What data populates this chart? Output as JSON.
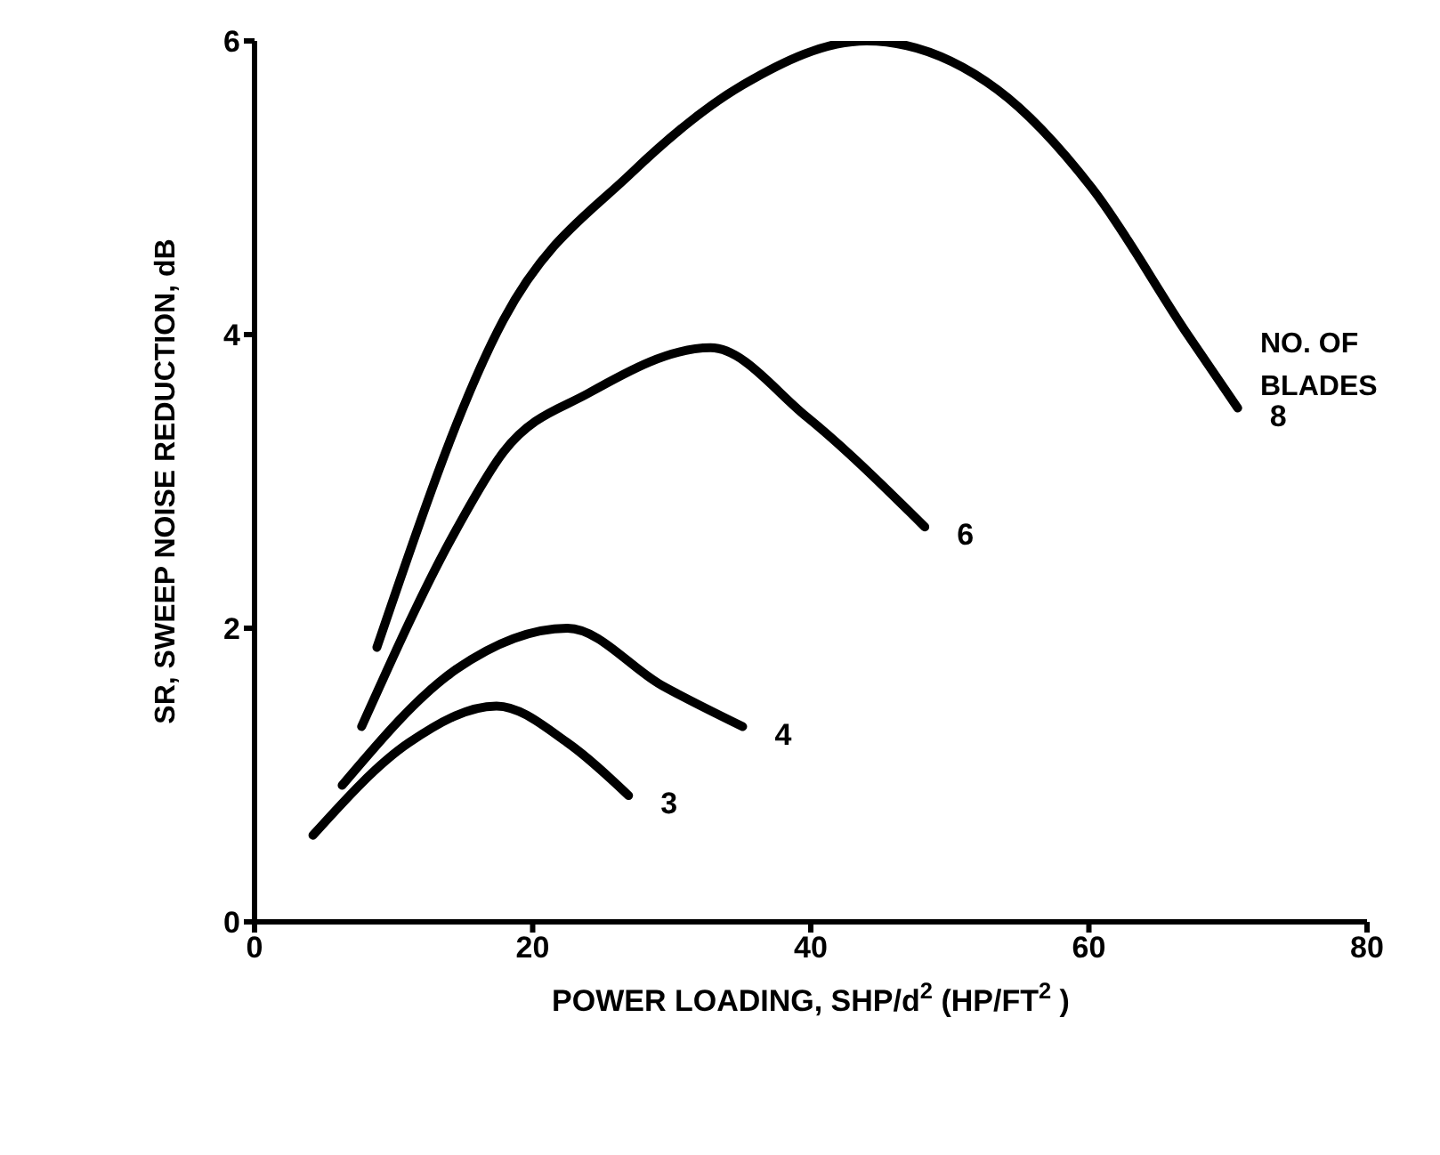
{
  "chart_data": {
    "type": "line",
    "xlabel": "POWER LOADING, SHP/d$^{2}$ (HP/FT$^{2}$)",
    "ylabel": "SR, SWEEP NOISE REDUCTION, dB",
    "xlim": [
      0,
      80
    ],
    "xticks": [
      0,
      20,
      40,
      60,
      80
    ],
    "ylim": [
      0,
      6
    ],
    "yticks": [
      0,
      2,
      4,
      6
    ],
    "grid": false,
    "legend": false,
    "marker": "none",
    "line_style": "solid",
    "annotations": [
      "NO. OF BLADES"
    ],
    "series": [
      {
        "name": "8",
        "color": "#000000",
        "x": [
          8.8,
          17.9,
          27.1,
          35.1,
          44,
          53.4,
          60.2,
          67.1,
          70.7
        ],
        "values": [
          1.87,
          4.1,
          5.1,
          5.7,
          6.0,
          5.67,
          5.0,
          4.0,
          3.5
        ]
      },
      {
        "name": "6",
        "color": "#000000",
        "x": [
          7.7,
          14.5,
          17.9,
          24,
          32.8,
          39.7,
          48.2
        ],
        "values": [
          1.33,
          2.67,
          3.2,
          3.6,
          3.91,
          3.44,
          2.69
        ]
      },
      {
        "name": "4",
        "color": "#000000",
        "x": [
          6.3,
          14.5,
          22.5,
          29.3,
          35.1
        ],
        "values": [
          0.93,
          1.72,
          2.0,
          1.61,
          1.33
        ]
      },
      {
        "name": "3",
        "color": "#000000",
        "x": [
          4.2,
          11.1,
          17.4,
          22.5,
          26.9
        ],
        "values": [
          0.59,
          1.22,
          1.47,
          1.22,
          0.86
        ]
      }
    ]
  }
}
